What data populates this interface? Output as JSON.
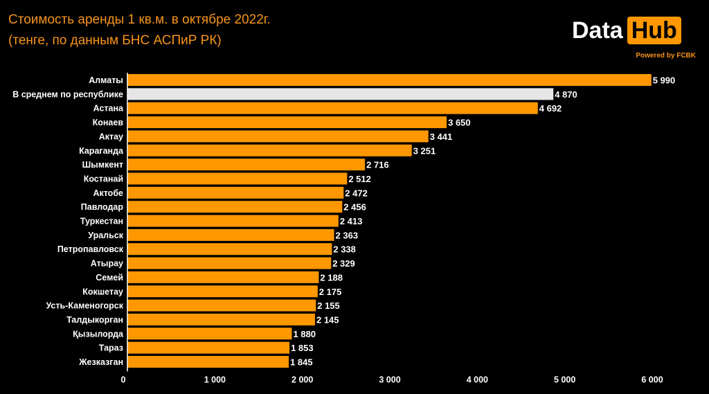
{
  "header": {
    "title_line1": "Стоимость аренды 1 кв.м. в октябре 2022г.",
    "title_line2": "(тенге, по данным БНС АСПиР РК)"
  },
  "logo": {
    "data_text": "Data",
    "hub_text": "Hub",
    "powered_text": "Powered by FCBK"
  },
  "colors": {
    "bar": "#ff9800",
    "highlight_bar": "#e6e6e6",
    "title": "#f7941d",
    "background": "#000000"
  },
  "chart_data": {
    "type": "bar",
    "orientation": "horizontal",
    "title": "Стоимость аренды 1 кв.м. в октябре 2022г.",
    "subtitle": "(тенге, по данным БНС АСПиР РК)",
    "xlabel": "",
    "ylabel": "",
    "xlim": [
      0,
      6000
    ],
    "grid": false,
    "highlight_category": "В среднем по республике",
    "categories": [
      "Алматы",
      "В среднем по республике",
      "Астана",
      "Конаев",
      "Актау",
      "Караганда",
      "Шымкент",
      "Костанай",
      "Актобе",
      "Павлодар",
      "Туркестан",
      "Уральск",
      "Петропавловск",
      "Атырау",
      "Семей",
      "Кокшетау",
      "Усть-Каменогорск",
      "Талдыкорган",
      "Қызылорда",
      "Тараз",
      "Жезказган"
    ],
    "values": [
      5990,
      4870,
      4692,
      3650,
      3441,
      3251,
      2716,
      2512,
      2472,
      2456,
      2413,
      2363,
      2338,
      2329,
      2188,
      2175,
      2155,
      2145,
      1880,
      1853,
      1845
    ],
    "value_labels": [
      "5 990",
      "4 870",
      "4 692",
      "3 650",
      "3 441",
      "3 251",
      "2 716",
      "2 512",
      "2 472",
      "2 456",
      "2 413",
      "2 363",
      "2 338",
      "2 329",
      "2 188",
      "2 175",
      "2 155",
      "2 145",
      "1 880",
      "1 853",
      "1 845"
    ],
    "ticks": [
      0,
      1000,
      2000,
      3000,
      4000,
      5000,
      6000
    ],
    "tick_labels": [
      "0",
      "1 000",
      "2 000",
      "3 000",
      "4 000",
      "5 000",
      "6 000"
    ]
  }
}
